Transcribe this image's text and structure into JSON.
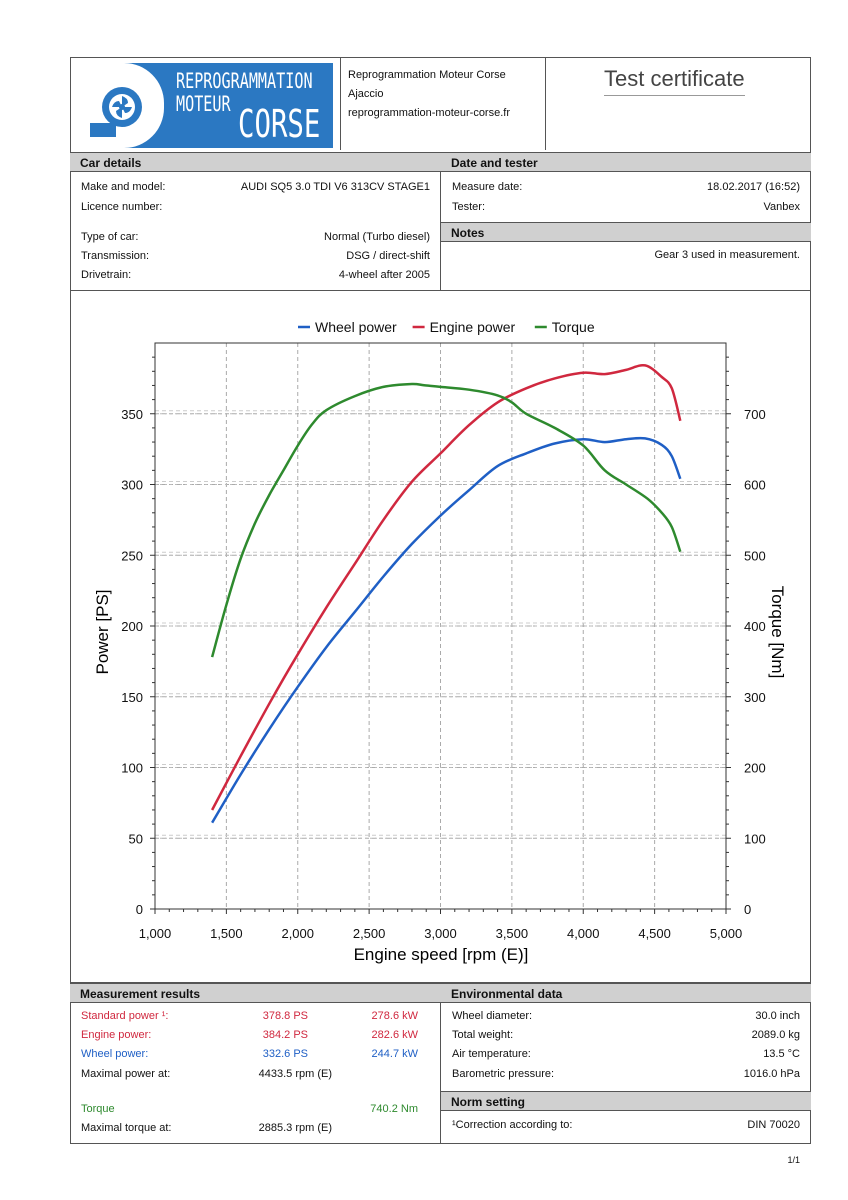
{
  "header": {
    "logo_line1": "REPROGRAMMATION",
    "logo_line2": "MOTEUR",
    "logo_line3": "CORSE",
    "company_name": "Reprogrammation Moteur Corse",
    "city": "Ajaccio",
    "website": "reprogrammation-moteur-corse.fr",
    "title": "Test certificate"
  },
  "car_details": {
    "heading": "Car details",
    "rows": [
      {
        "label": "Make and model:",
        "value": "AUDI SQ5 3.0 TDI V6 313CV STAGE1"
      },
      {
        "label": "Licence number:",
        "value": ""
      },
      {
        "label": "Type of car:",
        "value": "Normal (Turbo diesel)"
      },
      {
        "label": "Transmission:",
        "value": "DSG / direct-shift"
      },
      {
        "label": "Drivetrain:",
        "value": "4-wheel after 2005"
      }
    ]
  },
  "date_tester": {
    "heading": "Date and tester",
    "rows": [
      {
        "label": "Measure date:",
        "value": "18.02.2017 (16:52)"
      },
      {
        "label": "Tester:",
        "value": "Vanbex"
      }
    ]
  },
  "notes": {
    "heading": "Notes",
    "text": "Gear 3 used in measurement."
  },
  "chart_data": {
    "type": "line",
    "title": "",
    "xlabel": "Engine speed [rpm (E)]",
    "ylabel": "Power [PS]",
    "y2label": "Torque [Nm]",
    "xlim": [
      1000,
      5000
    ],
    "ylim": [
      0,
      400
    ],
    "y2lim": [
      0,
      800
    ],
    "x_ticks": [
      "1,000",
      "1,500",
      "2,000",
      "2,500",
      "3,000",
      "3,500",
      "4,000",
      "4,500",
      "5,000"
    ],
    "y_ticks": [
      "0",
      "50",
      "100",
      "150",
      "200",
      "250",
      "300",
      "350"
    ],
    "y2_ticks": [
      "0",
      "100",
      "200",
      "300",
      "400",
      "500",
      "600",
      "700"
    ],
    "grid": true,
    "legend_position": "top",
    "series": [
      {
        "name": "Wheel power",
        "color": "#1f5fc5",
        "axis": "left",
        "x": [
          1400,
          1600,
          1800,
          2000,
          2200,
          2400,
          2600,
          2800,
          3000,
          3200,
          3400,
          3600,
          3800,
          4000,
          4150,
          4300,
          4433,
          4550,
          4620,
          4680
        ],
        "y": [
          61,
          95,
          127,
          157,
          185,
          210,
          235,
          258,
          278,
          296,
          313,
          322,
          329,
          332,
          330,
          332,
          332.6,
          328,
          320,
          304
        ]
      },
      {
        "name": "Engine power",
        "color": "#d0283f",
        "axis": "left",
        "x": [
          1400,
          1600,
          1800,
          2000,
          2200,
          2400,
          2600,
          2800,
          3000,
          3200,
          3400,
          3600,
          3800,
          4000,
          4150,
          4300,
          4433,
          4550,
          4620,
          4680
        ],
        "y": [
          70,
          108,
          145,
          180,
          213,
          244,
          275,
          302,
          322,
          342,
          358,
          368,
          375,
          379,
          378,
          381,
          384.2,
          376,
          368,
          345
        ]
      },
      {
        "name": "Torque",
        "color": "#2e8a2e",
        "axis": "right",
        "x": [
          1400,
          1500,
          1600,
          1700,
          1800,
          1900,
          2000,
          2100,
          2200,
          2400,
          2600,
          2800,
          2885,
          3000,
          3200,
          3400,
          3500,
          3600,
          3800,
          4000,
          4150,
          4300,
          4450,
          4550,
          4620,
          4680
        ],
        "y": [
          356,
          430,
          495,
          545,
          585,
          620,
          655,
          685,
          705,
          725,
          738,
          742,
          740.2,
          738,
          734,
          726,
          716,
          700,
          680,
          655,
          620,
          600,
          580,
          560,
          540,
          505
        ]
      }
    ]
  },
  "measurement": {
    "heading": "Measurement results",
    "standard_label": "Standard power ¹:",
    "standard_ps": "378.8 PS",
    "standard_kw": "278.6 kW",
    "engine_label": "Engine power:",
    "engine_ps": "384.2 PS",
    "engine_kw": "282.6 kW",
    "wheel_label": "Wheel power:",
    "wheel_ps": "332.6 PS",
    "wheel_kw": "244.7 kW",
    "maxpower_label": "Maximal power at:",
    "maxpower_value": "4433.5 rpm (E)",
    "torque_label": "Torque",
    "torque_value": "740.2 Nm",
    "maxtorque_label": "Maximal torque at:",
    "maxtorque_value": "2885.3 rpm (E)"
  },
  "environment": {
    "heading": "Environmental data",
    "rows": [
      {
        "label": "Wheel diameter:",
        "value": "30.0 inch"
      },
      {
        "label": "Total weight:",
        "value": "2089.0 kg"
      },
      {
        "label": "Air temperature:",
        "value": "13.5 °C"
      },
      {
        "label": "Barometric pressure:",
        "value": "1016.0 hPa"
      }
    ]
  },
  "norm": {
    "heading": "Norm setting",
    "label": "¹Correction according to:",
    "value": "DIN 70020"
  },
  "page_number": "1/1"
}
